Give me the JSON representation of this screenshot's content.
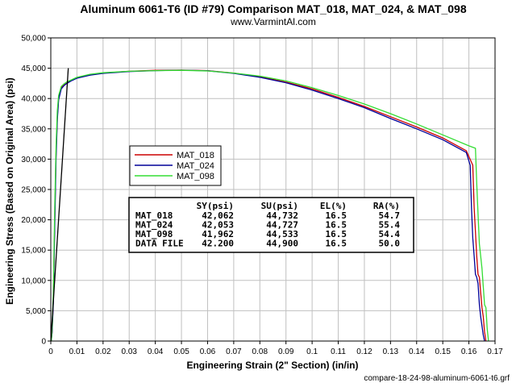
{
  "chart_data": {
    "type": "line",
    "title": "Aluminum 6061-T6 (ID #79) Comparison MAT_018, MAT_024, & MAT_098",
    "subtitle": "www.VarmintAl.com",
    "xlabel": "Engineering Strain (2\" Section) (in/in)",
    "ylabel": "Engineering Stress (Based on Original Area) (psi)",
    "footer": "compare-18-24-98-aluminum-6061-t6.grf",
    "xlim": [
      0,
      0.17
    ],
    "ylim": [
      0,
      50000
    ],
    "grid": true,
    "legend_position": "center-left",
    "x_ticks": [
      0,
      0.01,
      0.02,
      0.03,
      0.04,
      0.05,
      0.06,
      0.07,
      0.08,
      0.09,
      0.1,
      0.11,
      0.12,
      0.13,
      0.14,
      0.15,
      0.16,
      0.17
    ],
    "x_tick_labels": [
      "0",
      "0.01",
      "0.02",
      "0.03",
      "0.04",
      "0.05",
      "0.06",
      "0.07",
      "0.08",
      "0.09",
      "0.1",
      "0.11",
      "0.12",
      "0.13",
      "0.14",
      "0.15",
      "0.16",
      "0.17"
    ],
    "y_ticks": [
      0,
      5000,
      10000,
      15000,
      20000,
      25000,
      30000,
      35000,
      40000,
      45000,
      50000
    ],
    "y_tick_labels": [
      "0",
      "5,000",
      "10,000",
      "15,000",
      "20,000",
      "25,000",
      "30,000",
      "35,000",
      "40,000",
      "45,000",
      "50,000"
    ],
    "series": [
      {
        "name": "MAT_018",
        "color": "#cc0000",
        "x": [
          0.0002,
          0.0005,
          0.001,
          0.0015,
          0.002,
          0.0025,
          0.003,
          0.004,
          0.005,
          0.006,
          0.008,
          0.01,
          0.015,
          0.02,
          0.03,
          0.04,
          0.05,
          0.06,
          0.07,
          0.08,
          0.09,
          0.1,
          0.11,
          0.12,
          0.13,
          0.14,
          0.15,
          0.159,
          0.1615,
          0.162,
          0.1625,
          0.163,
          0.1635,
          0.164,
          0.1645,
          0.165,
          0.1655,
          0.166,
          0.1665
        ],
        "y": [
          0,
          1500,
          7000,
          20000,
          31000,
          37000,
          40000,
          41800,
          42200,
          42500,
          43000,
          43400,
          43900,
          44200,
          44500,
          44650,
          44700,
          44600,
          44200,
          43600,
          42700,
          41600,
          40200,
          38700,
          37000,
          35300,
          33500,
          31400,
          29000,
          22000,
          18000,
          14000,
          11000,
          10500,
          8000,
          5500,
          4000,
          1500,
          0
        ]
      },
      {
        "name": "MAT_024",
        "color": "#000099",
        "x": [
          0.0002,
          0.0005,
          0.001,
          0.0015,
          0.002,
          0.0025,
          0.003,
          0.004,
          0.005,
          0.006,
          0.008,
          0.01,
          0.015,
          0.02,
          0.03,
          0.04,
          0.05,
          0.06,
          0.07,
          0.08,
          0.09,
          0.1,
          0.11,
          0.12,
          0.13,
          0.14,
          0.15,
          0.159,
          0.1605,
          0.161,
          0.1615,
          0.162,
          0.1625,
          0.163,
          0.1635,
          0.164,
          0.1645,
          0.165,
          0.1655,
          0.166
        ],
        "y": [
          0,
          1400,
          6500,
          19000,
          30000,
          36500,
          39800,
          41600,
          42100,
          42450,
          42950,
          43350,
          43850,
          44150,
          44450,
          44600,
          44680,
          44580,
          44150,
          43500,
          42600,
          41400,
          40000,
          38500,
          36700,
          35000,
          33200,
          31100,
          29000,
          22000,
          17000,
          14000,
          11000,
          10500,
          9500,
          6000,
          4000,
          2500,
          1000,
          0
        ]
      },
      {
        "name": "MAT_098",
        "color": "#33dd33",
        "x": [
          0.0002,
          0.0005,
          0.001,
          0.0015,
          0.002,
          0.0025,
          0.003,
          0.004,
          0.005,
          0.006,
          0.008,
          0.01,
          0.015,
          0.02,
          0.03,
          0.04,
          0.05,
          0.06,
          0.07,
          0.08,
          0.09,
          0.1,
          0.11,
          0.12,
          0.13,
          0.14,
          0.15,
          0.16,
          0.1625,
          0.163,
          0.1635,
          0.164,
          0.1645,
          0.165,
          0.1655,
          0.166,
          0.1665,
          0.167,
          0.1675
        ],
        "y": [
          0,
          2000,
          8000,
          22000,
          32000,
          38000,
          40500,
          42000,
          42400,
          42700,
          43100,
          43500,
          44000,
          44250,
          44500,
          44600,
          44650,
          44550,
          44200,
          43700,
          42900,
          41800,
          40500,
          39100,
          37500,
          35800,
          34000,
          32200,
          31800,
          26000,
          21000,
          16000,
          14000,
          12000,
          9000,
          6000,
          5500,
          2000,
          0
        ]
      },
      {
        "name": "",
        "color": "#000000",
        "x": [
          0,
          0.0067
        ],
        "y": [
          0,
          45000
        ]
      }
    ],
    "table": {
      "headers": [
        "",
        "SY(psi)",
        "SU(psi)",
        "EL(%)",
        "RA(%)"
      ],
      "rows": [
        [
          "MAT_018",
          "42,062",
          "44,732",
          "16.5",
          "54.7"
        ],
        [
          "MAT_024",
          "42,053",
          "44,727",
          "16.5",
          "55.4"
        ],
        [
          "MAT_098",
          "41,962",
          "44,533",
          "16.5",
          "54.4"
        ],
        [
          "DATA FILE",
          "42.200",
          "44,900",
          "16.5",
          "50.0"
        ]
      ]
    }
  }
}
